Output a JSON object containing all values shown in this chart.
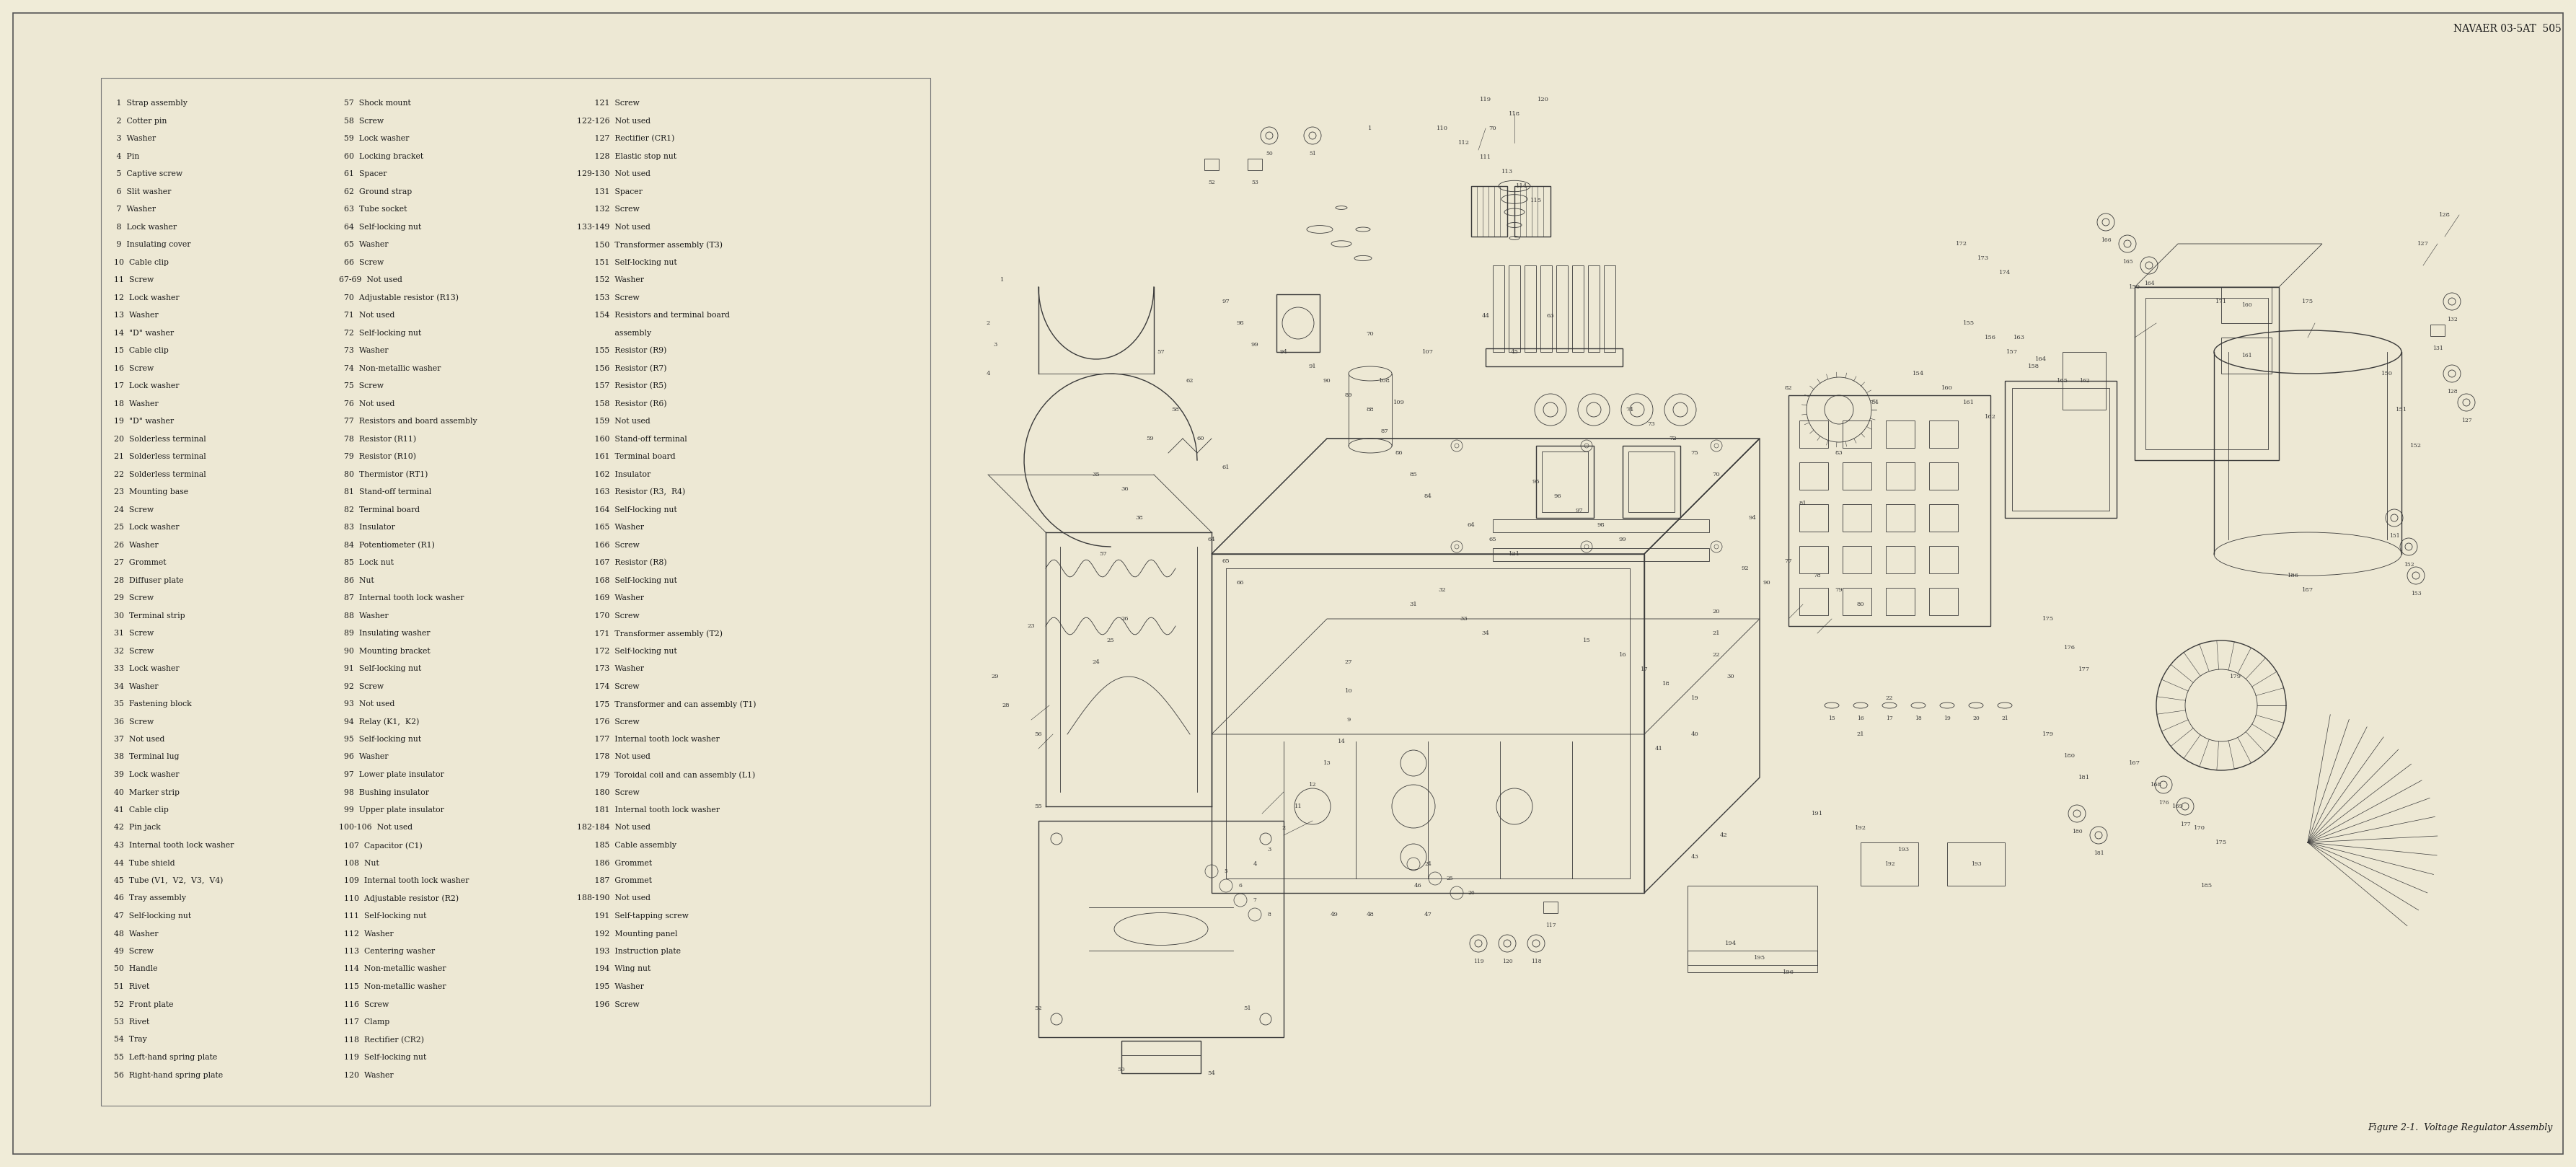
{
  "page_bg": "#f0ecd8",
  "paper_bg": "#ede8d4",
  "border_color": "#555555",
  "text_color": "#1a1a1a",
  "diagram_line_color": "#3a3a3a",
  "header_text": "NAVAER 03-5AT  505",
  "footer_text": "Figure 2-1.  Voltage Regulator Assembly",
  "header_fontsize": 10,
  "body_fontsize": 7.8,
  "footer_fontsize": 9,
  "parts_col1": [
    " 1  Strap assembly",
    " 2  Cotter pin",
    " 3  Washer",
    " 4  Pin",
    " 5  Captive screw",
    " 6  Slit washer",
    " 7  Washer",
    " 8  Lock washer",
    " 9  Insulating cover",
    "10  Cable clip",
    "11  Screw",
    "12  Lock washer",
    "13  Washer",
    "14  \"D\" washer",
    "15  Cable clip",
    "16  Screw",
    "17  Lock washer",
    "18  Washer",
    "19  \"D\" washer",
    "20  Solderless terminal",
    "21  Solderless terminal",
    "22  Solderless terminal",
    "23  Mounting base",
    "24  Screw",
    "25  Lock washer",
    "26  Washer",
    "27  Grommet",
    "28  Diffuser plate",
    "29  Screw",
    "30  Terminal strip",
    "31  Screw",
    "32  Screw",
    "33  Lock washer",
    "34  Washer",
    "35  Fastening block",
    "36  Screw",
    "37  Not used",
    "38  Terminal lug",
    "39  Lock washer",
    "40  Marker strip",
    "41  Cable clip",
    "42  Pin jack",
    "43  Internal tooth lock washer",
    "44  Tube shield",
    "45  Tube (V1,  V2,  V3,  V4)",
    "46  Tray assembly",
    "47  Self-locking nut",
    "48  Washer",
    "49  Screw",
    "50  Handle",
    "51  Rivet",
    "52  Front plate",
    "53  Rivet",
    "54  Tray",
    "55  Left-hand spring plate",
    "56  Right-hand spring plate"
  ],
  "parts_col2": [
    "  57  Shock mount",
    "  58  Screw",
    "  59  Lock washer",
    "  60  Locking bracket",
    "  61  Spacer",
    "  62  Ground strap",
    "  63  Tube socket",
    "  64  Self-locking nut",
    "  65  Washer",
    "  66  Screw",
    "67-69  Not used",
    "  70  Adjustable resistor (R13)",
    "  71  Not used",
    "  72  Self-locking nut",
    "  73  Washer",
    "  74  Non-metallic washer",
    "  75  Screw",
    "  76  Not used",
    "  77  Resistors and board assembly",
    "  78  Resistor (R11)",
    "  79  Resistor (R10)",
    "  80  Thermistor (RT1)",
    "  81  Stand-off terminal",
    "  82  Terminal board",
    "  83  Insulator",
    "  84  Potentiometer (R1)",
    "  85  Lock nut",
    "  86  Nut",
    "  87  Internal tooth lock washer",
    "  88  Washer",
    "  89  Insulating washer",
    "  90  Mounting bracket",
    "  91  Self-locking nut",
    "  92  Screw",
    "  93  Not used",
    "  94  Relay (K1,  K2)",
    "  95  Self-locking nut",
    "  96  Washer",
    "  97  Lower plate insulator",
    "  98  Bushing insulator",
    "  99  Upper plate insulator",
    "100-106  Not used",
    "  107  Capacitor (C1)",
    "  108  Nut",
    "  109  Internal tooth lock washer",
    "  110  Adjustable resistor (R2)",
    "  111  Self-locking nut",
    "  112  Washer",
    "  113  Centering washer",
    "  114  Non-metallic washer",
    "  115  Non-metallic washer",
    "  116  Screw",
    "  117  Clamp",
    "  118  Rectifier (CR2)",
    "  119  Self-locking nut",
    "  120  Washer"
  ],
  "parts_col3": [
    "       121  Screw",
    "122-126  Not used",
    "       127  Rectifier (CR1)",
    "       128  Elastic stop nut",
    "129-130  Not used",
    "       131  Spacer",
    "       132  Screw",
    "133-149  Not used",
    "       150  Transformer assembly (T3)",
    "       151  Self-locking nut",
    "       152  Washer",
    "       153  Screw",
    "       154  Resistors and terminal board",
    "               assembly",
    "       155  Resistor (R9)",
    "       156  Resistor (R7)",
    "       157  Resistor (R5)",
    "       158  Resistor (R6)",
    "       159  Not used",
    "       160  Stand-off terminal",
    "       161  Terminal board",
    "       162  Insulator",
    "       163  Resistor (R3,  R4)",
    "       164  Self-locking nut",
    "       165  Washer",
    "       166  Screw",
    "       167  Resistor (R8)",
    "       168  Self-locking nut",
    "       169  Washer",
    "       170  Screw",
    "       171  Transformer assembly (T2)",
    "       172  Self-locking nut",
    "       173  Washer",
    "       174  Screw",
    "       175  Transformer and can assembly (T1)",
    "       176  Screw",
    "       177  Internal tooth lock washer",
    "       178  Not used",
    "       179  Toroidal coil and can assembly (L1)",
    "       180  Screw",
    "       181  Internal tooth lock washer",
    "182-184  Not used",
    "       185  Cable assembly",
    "       186  Grommet",
    "       187  Grommet",
    "188-190  Not used",
    "       191  Self-tapping screw",
    "       192  Mounting panel",
    "       193  Instruction plate",
    "       194  Wing nut",
    "       195  Washer",
    "       196  Screw"
  ]
}
